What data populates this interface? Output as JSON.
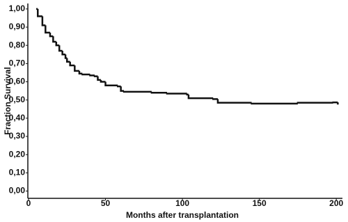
{
  "chart_data": {
    "type": "step",
    "x_label": "Months after transplantation",
    "y_label": "Fraction Survival",
    "color": "#111111",
    "x": [
      5,
      6,
      9,
      11,
      14,
      16,
      18,
      20,
      22,
      24,
      25,
      27,
      30,
      33,
      35,
      40,
      43,
      45,
      47,
      50,
      58,
      60,
      62,
      80,
      90,
      103,
      104,
      120,
      123,
      145,
      175,
      198,
      201
    ],
    "values": [
      1.0,
      0.96,
      0.91,
      0.87,
      0.85,
      0.82,
      0.8,
      0.77,
      0.75,
      0.73,
      0.71,
      0.69,
      0.66,
      0.645,
      0.64,
      0.635,
      0.63,
      0.61,
      0.6,
      0.58,
      0.575,
      0.55,
      0.545,
      0.54,
      0.535,
      0.53,
      0.51,
      0.505,
      0.485,
      0.48,
      0.485,
      0.487,
      0.475
    ],
    "xlim": [
      0,
      204
    ],
    "ylim": [
      -0.04,
      1.03
    ],
    "xticks": [
      0,
      50,
      100,
      150,
      200
    ],
    "yticks": [
      {
        "value": 0,
        "label": "0,00"
      },
      {
        "value": 0.1,
        "label": "0,10"
      },
      {
        "value": 0.2,
        "label": "0,20"
      },
      {
        "value": 0.3,
        "label": "0,30"
      },
      {
        "value": 0.4,
        "label": "0,40"
      },
      {
        "value": 0.5,
        "label": "0,50"
      },
      {
        "value": 0.6,
        "label": "0,60"
      },
      {
        "value": 0.7,
        "label": "0,70"
      },
      {
        "value": 0.8,
        "label": "0,80"
      },
      {
        "value": 0.9,
        "label": "0,90"
      },
      {
        "value": 1,
        "label": "1,00"
      }
    ],
    "grid": false
  }
}
